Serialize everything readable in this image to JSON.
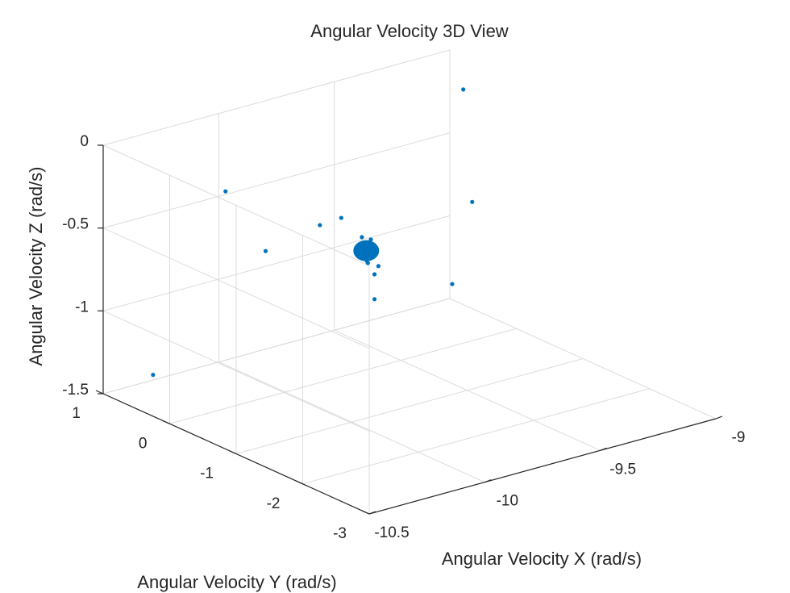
{
  "chart_data": {
    "type": "scatter",
    "title": "Angular Velocity 3D View",
    "xlabel": "Angular Velocity X (rad/s)",
    "ylabel": "Angular Velocity Y (rad/s)",
    "zlabel": "Angular Velocity Z (rad/s)",
    "xlim": [
      -10.5,
      -9
    ],
    "ylim": [
      -3,
      1
    ],
    "zlim": [
      -1.5,
      0
    ],
    "x_ticks": [
      -10.5,
      -10,
      -9.5,
      -9
    ],
    "x_tick_labels": [
      "-10.5",
      "-10",
      "-9.5",
      "-9"
    ],
    "y_ticks": [
      -3,
      -2,
      -1,
      0,
      1
    ],
    "y_tick_labels": [
      "-3",
      "-2",
      "-1",
      "0",
      "1"
    ],
    "z_ticks": [
      -1.5,
      -1,
      -0.5,
      0
    ],
    "z_tick_labels": [
      "-1.5",
      "-1",
      "-0.5",
      "0"
    ],
    "grid": true,
    "marker_color": "#0072BD",
    "series": [
      {
        "points": [
          {
            "x": -10.5,
            "y": 0.25,
            "z": -1.25
          },
          {
            "x": -9.1,
            "y": 0.45,
            "z": -0.1
          },
          {
            "x": -10.1,
            "y": 0.55,
            "z": -0.35
          },
          {
            "x": -9.45,
            "y": -0.9,
            "z": -0.4
          },
          {
            "x": -10.2,
            "y": -0.4,
            "z": -0.5
          },
          {
            "x": -9.7,
            "y": 0.2,
            "z": -0.6
          },
          {
            "x": -9.45,
            "y": -0.6,
            "z": -0.95
          },
          {
            "x": -9.85,
            "y": 0.0,
            "z": -0.55
          },
          {
            "x": -9.7,
            "y": -0.3,
            "z": -1.0
          },
          {
            "x": -9.75,
            "y": -0.2,
            "z": -0.72
          },
          {
            "x": -9.68,
            "y": -0.18,
            "z": -0.7
          },
          {
            "x": -9.72,
            "y": -0.25,
            "z": -0.74
          },
          {
            "x": -9.7,
            "y": -0.15,
            "z": -0.69
          },
          {
            "x": -9.74,
            "y": -0.22,
            "z": -0.71
          },
          {
            "x": -9.69,
            "y": -0.2,
            "z": -0.73
          },
          {
            "x": -9.71,
            "y": -0.17,
            "z": -0.72
          },
          {
            "x": -9.73,
            "y": -0.23,
            "z": -0.7
          },
          {
            "x": -9.7,
            "y": -0.21,
            "z": -0.75
          },
          {
            "x": -9.72,
            "y": -0.19,
            "z": -0.68
          },
          {
            "x": -9.68,
            "y": -0.24,
            "z": -0.72
          },
          {
            "x": -9.71,
            "y": -0.22,
            "z": -0.78
          },
          {
            "x": -9.7,
            "y": -0.2,
            "z": -0.8
          },
          {
            "x": -9.69,
            "y": -0.21,
            "z": -0.66
          },
          {
            "x": -9.72,
            "y": -0.18,
            "z": -0.64
          },
          {
            "x": -9.7,
            "y": -0.3,
            "z": -0.85
          },
          {
            "x": -9.66,
            "y": -0.22,
            "z": -0.83
          },
          {
            "x": -9.75,
            "y": -0.26,
            "z": -0.71
          },
          {
            "x": -9.67,
            "y": -0.16,
            "z": -0.71
          },
          {
            "x": -9.73,
            "y": -0.14,
            "z": -0.7
          },
          {
            "x": -9.69,
            "y": -0.27,
            "z": -0.73
          }
        ]
      }
    ]
  }
}
